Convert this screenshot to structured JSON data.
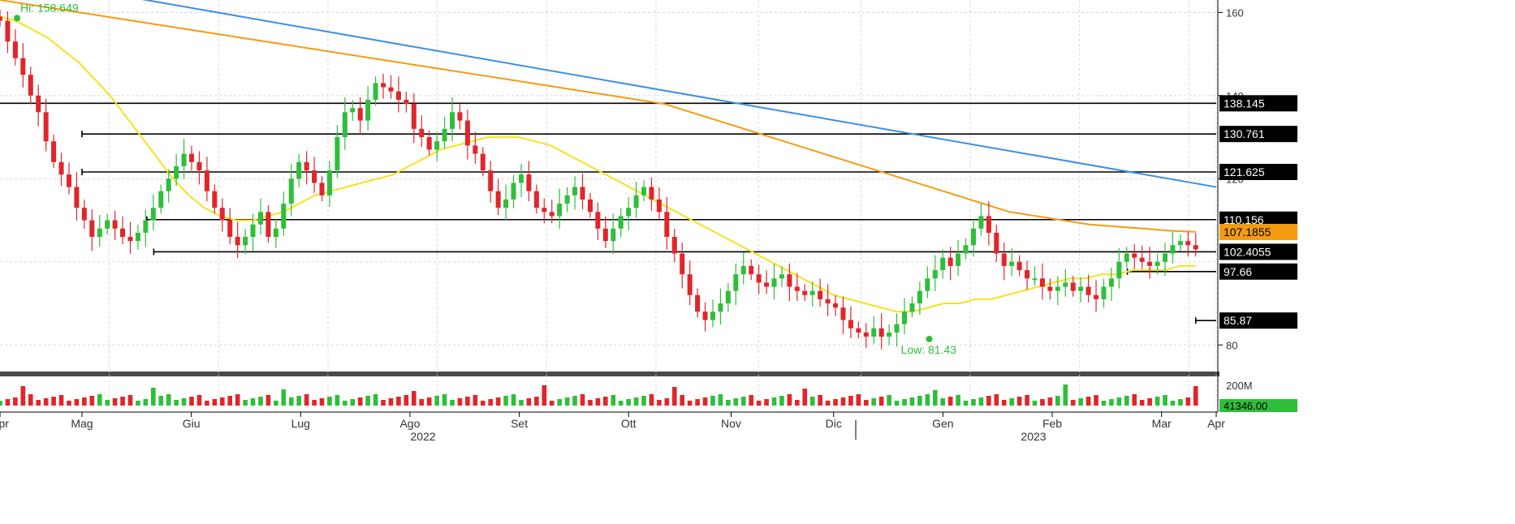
{
  "chart_data": {
    "type": "candlestick",
    "title": "",
    "xlabel": "",
    "ylabel": "",
    "ylim": [
      74,
      163
    ],
    "y_ticks": [
      80,
      120,
      140,
      160
    ],
    "grid": true,
    "x_month_labels": [
      "Apr",
      "Mag",
      "Giu",
      "Lug",
      "Ago",
      "Set",
      "Ott",
      "Nov",
      "Dic",
      "Gen",
      "Feb",
      "Mar",
      "Apr"
    ],
    "x_year_labels": [
      "2022",
      "2023"
    ],
    "annotations": {
      "hi": {
        "label": "Hi: 158.649",
        "value": 158.649,
        "day": 5
      },
      "low": {
        "label": "Low: 81.43",
        "value": 81.43,
        "day": 272
      }
    },
    "price_lines": [
      {
        "value": 138.145,
        "label": "138.145",
        "start_day": 0
      },
      {
        "value": 130.761,
        "label": "130.761",
        "start_day": 24
      },
      {
        "value": 121.625,
        "label": "121.625",
        "start_day": 24
      },
      {
        "value": 110.156,
        "label": "110.156",
        "start_day": 43
      },
      {
        "value": 102.4055,
        "label": "102.4055",
        "start_day": 45
      },
      {
        "value": 97.66,
        "label": "97.66",
        "start_day": 330
      },
      {
        "value": 85.87,
        "label": "85.87",
        "start_day": 350
      }
    ],
    "moving_average_label": {
      "value": 107.1855,
      "label": "107.1855",
      "color": "#f39c12"
    },
    "trendline": {
      "color": "#3d8fe0",
      "start": {
        "day": 40,
        "value": 163.4
      },
      "end": {
        "day": 352,
        "value": 118.0
      }
    },
    "closes": [
      158,
      153,
      149,
      145,
      140,
      136,
      129,
      124,
      121,
      118,
      113,
      110,
      106,
      108,
      110,
      108,
      106,
      105,
      107,
      110,
      113,
      117,
      120,
      123,
      126,
      124,
      122,
      117,
      113,
      110,
      106,
      104,
      106,
      109,
      112,
      106,
      108,
      114,
      120,
      124,
      122,
      119,
      116,
      122,
      130,
      136,
      137,
      134,
      139,
      143,
      142,
      141,
      139,
      138,
      132,
      130,
      127,
      129,
      132,
      136,
      134,
      128,
      126,
      122,
      117,
      113,
      115,
      119,
      121,
      117,
      113,
      112,
      111,
      114,
      116,
      118,
      115,
      112,
      108,
      105,
      108,
      111,
      113,
      116,
      118,
      115,
      112,
      106,
      102,
      97,
      92,
      88,
      86,
      88,
      90,
      93,
      97,
      99,
      97,
      95,
      94,
      96,
      97,
      94,
      93,
      92,
      93,
      91,
      90,
      89,
      86,
      84,
      83,
      82,
      84,
      82,
      83,
      85,
      88,
      90,
      93,
      96,
      98,
      101,
      99,
      102,
      104,
      108,
      111,
      107,
      102,
      99,
      100,
      98,
      96,
      96,
      94,
      93,
      94,
      95,
      93,
      94,
      92,
      91,
      94,
      96,
      100,
      102,
      101,
      100,
      99,
      100,
      102,
      104,
      105,
      104,
      103
    ],
    "ma50": [
      159,
      158,
      156,
      154,
      151,
      148,
      144,
      140,
      135,
      130,
      125,
      120,
      116,
      113,
      111,
      110,
      110,
      111,
      112,
      114,
      116,
      117,
      118,
      119,
      120,
      121,
      123,
      125,
      127,
      128,
      129,
      130,
      130,
      130,
      129,
      128,
      126,
      124,
      122,
      120,
      118,
      116,
      114,
      112,
      110,
      108,
      106,
      104,
      102,
      100,
      98,
      96,
      94,
      92,
      91,
      90,
      89,
      88,
      88,
      89,
      90,
      90,
      91,
      91,
      92,
      93,
      94,
      95,
      96,
      96,
      97,
      97,
      98,
      98,
      98,
      99,
      99
    ],
    "ma200": [
      163,
      162,
      161,
      160,
      159,
      158,
      157,
      156,
      155,
      154,
      153,
      152,
      151,
      150,
      149,
      148,
      147,
      146,
      145,
      144,
      143,
      142,
      141,
      140,
      139,
      138,
      136,
      134,
      132,
      130,
      128,
      126,
      124,
      122,
      120,
      118,
      116,
      114,
      112,
      111,
      110,
      109,
      108.5,
      108,
      107.5,
      107.2
    ],
    "volume_axis": {
      "tick": "200M",
      "last_label": "41346.00"
    }
  }
}
